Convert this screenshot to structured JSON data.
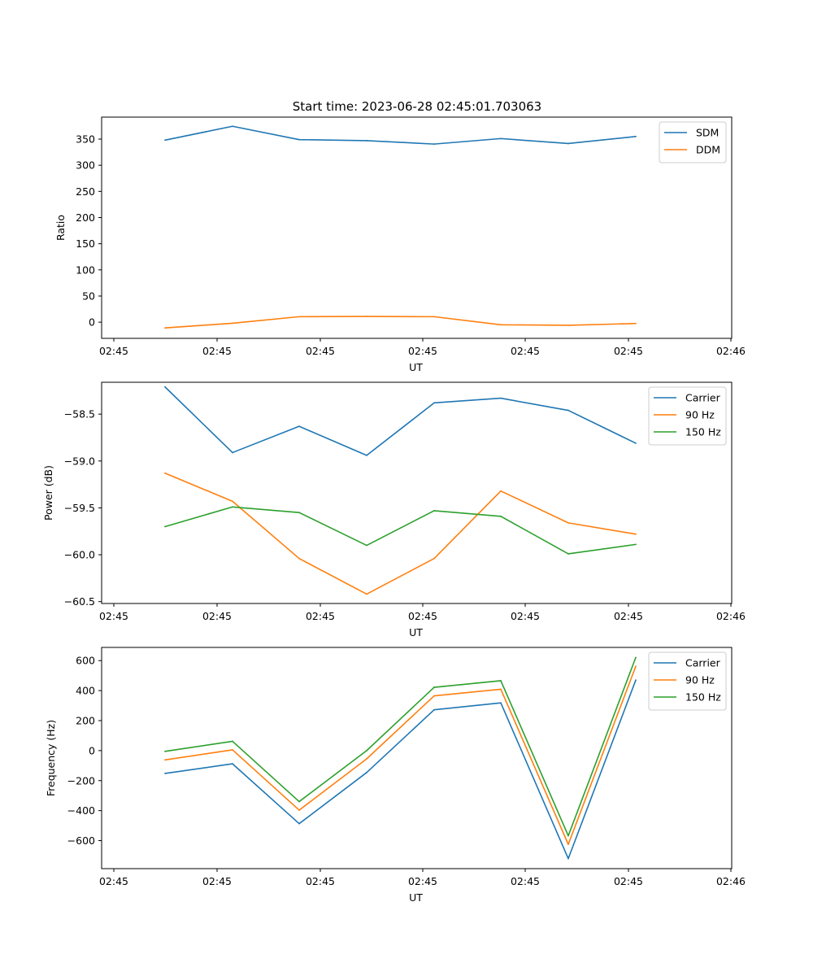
{
  "figure": {
    "title": "Start time: 2023-06-28 02:45:01.703063"
  },
  "chart_data": [
    {
      "type": "line",
      "xlabel": "UT",
      "ylabel": "Ratio",
      "x_tick_labels": [
        "02:45",
        "02:45",
        "02:45",
        "02:45",
        "02:45",
        "02:45",
        "02:46"
      ],
      "yticks": [
        0,
        50,
        100,
        150,
        200,
        250,
        300,
        350
      ],
      "ylim": [
        -30.9,
        392
      ],
      "grid": false,
      "legend_position": "upper right",
      "series": [
        {
          "name": "SDM",
          "color": "#1f77b4",
          "values": [
            348,
            374.5,
            349,
            347,
            340.5,
            351,
            341.5,
            355
          ]
        },
        {
          "name": "DDM",
          "color": "#ff7f0e",
          "values": [
            -11,
            -2,
            10.5,
            11,
            10.5,
            -5,
            -6,
            -2.5
          ]
        }
      ]
    },
    {
      "type": "line",
      "xlabel": "UT",
      "ylabel": "Power (dB)",
      "x_tick_labels": [
        "02:45",
        "02:45",
        "02:45",
        "02:45",
        "02:45",
        "02:45",
        "02:46"
      ],
      "ytick_labels": [
        "−58.5",
        "−59.0",
        "−59.5",
        "−60.0",
        "−60.5"
      ],
      "yticks": [
        -58.5,
        -59.0,
        -59.5,
        -60.0,
        -60.5
      ],
      "ylim": [
        -60.52,
        -58.16
      ],
      "grid": false,
      "legend_position": "upper right",
      "series": [
        {
          "name": "Carrier",
          "color": "#1f77b4",
          "values": [
            -58.21,
            -58.91,
            -58.63,
            -58.94,
            -58.38,
            -58.33,
            -58.46,
            -58.81
          ]
        },
        {
          "name": "90 Hz",
          "color": "#ff7f0e",
          "values": [
            -59.13,
            -59.43,
            -60.04,
            -60.42,
            -60.04,
            -59.32,
            -59.66,
            -59.78
          ]
        },
        {
          "name": "150 Hz",
          "color": "#2ca02c",
          "values": [
            -59.7,
            -59.49,
            -59.55,
            -59.9,
            -59.53,
            -59.59,
            -59.99,
            -59.89
          ]
        }
      ]
    },
    {
      "type": "line",
      "xlabel": "UT",
      "ylabel": "Frequency (Hz)",
      "x_tick_labels": [
        "02:45",
        "02:45",
        "02:45",
        "02:45",
        "02:45",
        "02:45",
        "02:46"
      ],
      "ytick_labels": [
        "600",
        "400",
        "200",
        "0",
        "−200",
        "−400",
        "−600"
      ],
      "yticks": [
        600,
        400,
        200,
        0,
        -200,
        -400,
        -600
      ],
      "ylim": [
        -787,
        688
      ],
      "grid": false,
      "legend_position": "upper right",
      "series": [
        {
          "name": "Carrier",
          "color": "#1f77b4",
          "values": [
            -152,
            -88,
            -487,
            -146,
            272,
            318,
            -720,
            470
          ]
        },
        {
          "name": "90 Hz",
          "color": "#ff7f0e",
          "values": [
            -62,
            5,
            -397,
            -55,
            365,
            409,
            -625,
            562
          ]
        },
        {
          "name": "150 Hz",
          "color": "#2ca02c",
          "values": [
            -5,
            62,
            -340,
            0,
            422,
            466,
            -568,
            621
          ]
        }
      ]
    }
  ]
}
